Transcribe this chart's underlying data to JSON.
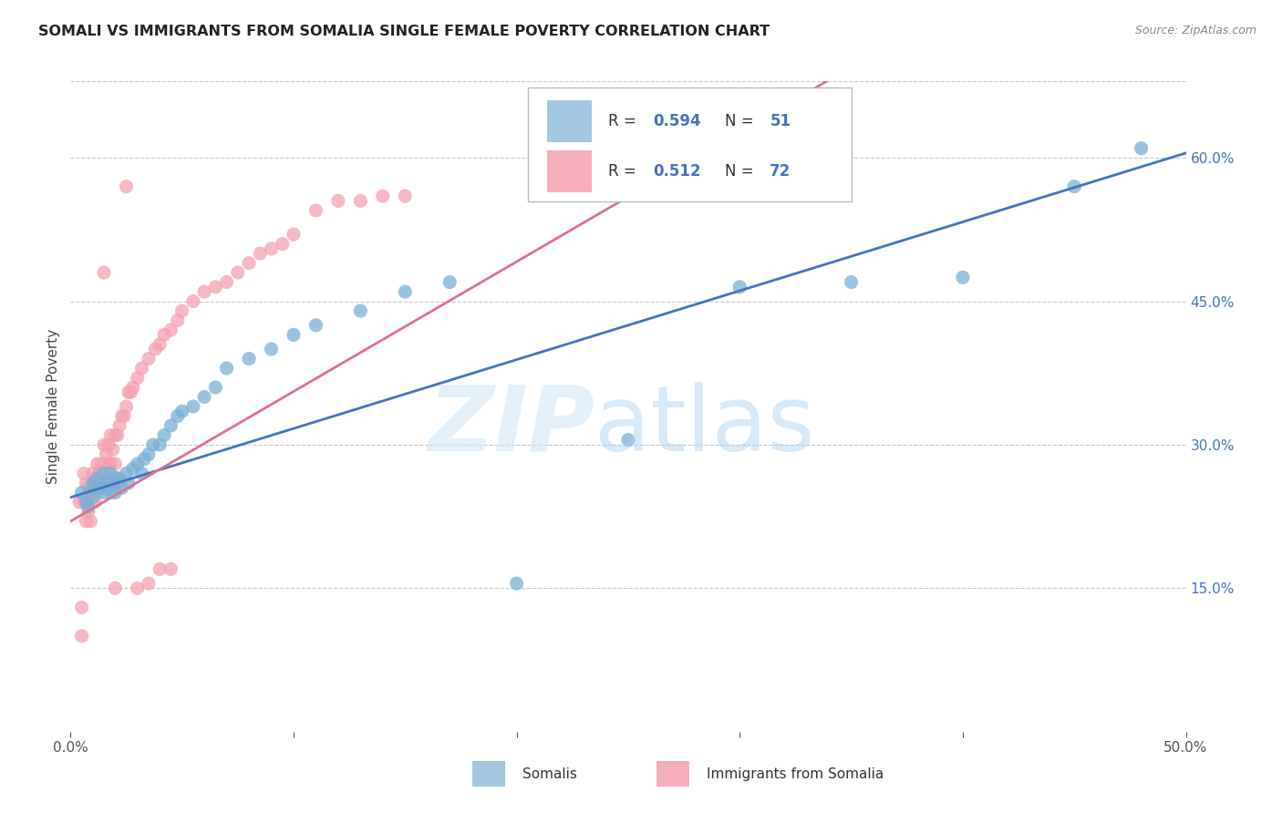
{
  "title": "SOMALI VS IMMIGRANTS FROM SOMALIA SINGLE FEMALE POVERTY CORRELATION CHART",
  "source": "Source: ZipAtlas.com",
  "ylabel": "Single Female Poverty",
  "watermark_zip": "ZIP",
  "watermark_atlas": "atlas",
  "somalis_color": "#7bafd4",
  "somalis_edge": "#5b9bd5",
  "immigrants_color": "#f4a0b0",
  "immigrants_edge": "#e06070",
  "somalis_line_color": "#4472c4",
  "immigrants_line_color": "#e07090",
  "background_color": "#ffffff",
  "grid_color": "#c8c8c8",
  "xlim": [
    0.0,
    0.5
  ],
  "ylim": [
    0.0,
    0.68
  ],
  "right_yticks": [
    0.15,
    0.3,
    0.45,
    0.6
  ],
  "R_somalis": 0.594,
  "N_somalis": 51,
  "R_immigrants": 0.512,
  "N_immigrants": 72,
  "blue_line_y0": 0.245,
  "blue_line_y1": 0.605,
  "pink_line_y0": 0.22,
  "pink_line_y1": 0.6,
  "somalis_x": [
    0.005,
    0.007,
    0.008,
    0.01,
    0.01,
    0.01,
    0.012,
    0.013,
    0.015,
    0.015,
    0.016,
    0.017,
    0.018,
    0.018,
    0.019,
    0.02,
    0.02,
    0.021,
    0.022,
    0.023,
    0.025,
    0.026,
    0.028,
    0.03,
    0.032,
    0.033,
    0.035,
    0.037,
    0.04,
    0.042,
    0.045,
    0.048,
    0.05,
    0.055,
    0.06,
    0.065,
    0.07,
    0.08,
    0.09,
    0.1,
    0.11,
    0.13,
    0.15,
    0.17,
    0.2,
    0.25,
    0.3,
    0.35,
    0.4,
    0.45,
    0.48
  ],
  "somalis_y": [
    0.25,
    0.24,
    0.235,
    0.255,
    0.245,
    0.26,
    0.265,
    0.255,
    0.27,
    0.25,
    0.255,
    0.26,
    0.25,
    0.27,
    0.26,
    0.265,
    0.25,
    0.26,
    0.265,
    0.255,
    0.27,
    0.26,
    0.275,
    0.28,
    0.27,
    0.285,
    0.29,
    0.3,
    0.3,
    0.31,
    0.32,
    0.33,
    0.335,
    0.34,
    0.35,
    0.36,
    0.38,
    0.39,
    0.4,
    0.415,
    0.425,
    0.44,
    0.46,
    0.47,
    0.155,
    0.305,
    0.465,
    0.47,
    0.475,
    0.57,
    0.61
  ],
  "immigrants_x": [
    0.004,
    0.005,
    0.005,
    0.006,
    0.006,
    0.007,
    0.007,
    0.008,
    0.008,
    0.009,
    0.009,
    0.01,
    0.01,
    0.011,
    0.011,
    0.012,
    0.012,
    0.013,
    0.013,
    0.014,
    0.014,
    0.015,
    0.015,
    0.016,
    0.016,
    0.017,
    0.017,
    0.018,
    0.018,
    0.019,
    0.019,
    0.02,
    0.02,
    0.021,
    0.022,
    0.023,
    0.024,
    0.025,
    0.026,
    0.027,
    0.028,
    0.03,
    0.032,
    0.035,
    0.038,
    0.04,
    0.042,
    0.045,
    0.048,
    0.05,
    0.055,
    0.06,
    0.065,
    0.07,
    0.075,
    0.08,
    0.085,
    0.09,
    0.095,
    0.1,
    0.11,
    0.12,
    0.13,
    0.14,
    0.15,
    0.015,
    0.02,
    0.025,
    0.03,
    0.035,
    0.04,
    0.045
  ],
  "immigrants_y": [
    0.24,
    0.13,
    0.1,
    0.27,
    0.24,
    0.26,
    0.22,
    0.255,
    0.23,
    0.25,
    0.22,
    0.27,
    0.25,
    0.26,
    0.24,
    0.28,
    0.25,
    0.27,
    0.26,
    0.28,
    0.255,
    0.3,
    0.26,
    0.29,
    0.26,
    0.3,
    0.28,
    0.31,
    0.28,
    0.295,
    0.265,
    0.31,
    0.28,
    0.31,
    0.32,
    0.33,
    0.33,
    0.34,
    0.355,
    0.355,
    0.36,
    0.37,
    0.38,
    0.39,
    0.4,
    0.405,
    0.415,
    0.42,
    0.43,
    0.44,
    0.45,
    0.46,
    0.465,
    0.47,
    0.48,
    0.49,
    0.5,
    0.505,
    0.51,
    0.52,
    0.545,
    0.555,
    0.555,
    0.56,
    0.56,
    0.48,
    0.15,
    0.57,
    0.15,
    0.155,
    0.17,
    0.17
  ]
}
